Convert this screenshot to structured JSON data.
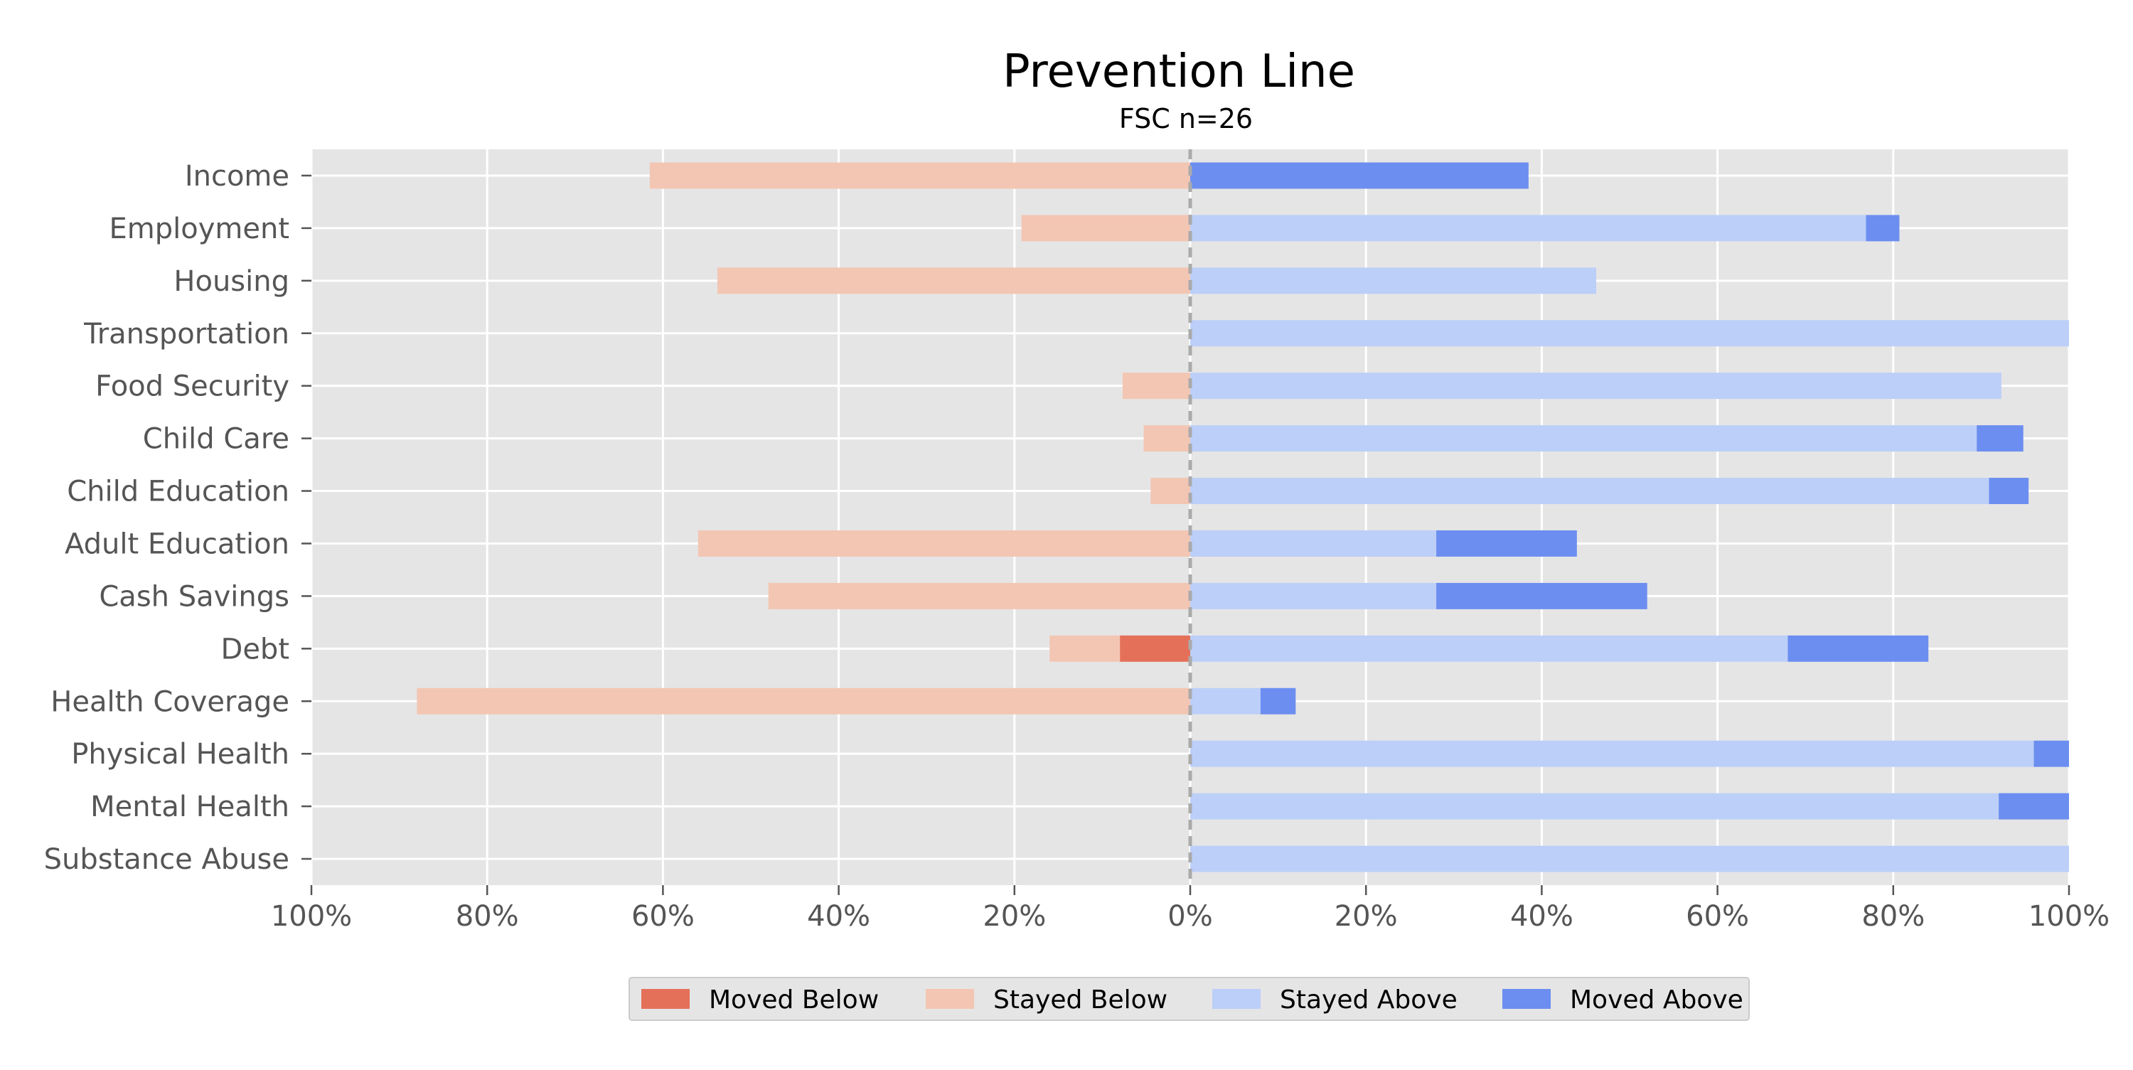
{
  "chart_data": {
    "type": "bar",
    "orientation": "horizontal",
    "stacked": "diverging",
    "title": "Prevention Line",
    "subtitle": "FSC n=26",
    "xlabel": "",
    "ylabel": "",
    "xlim": [
      -100,
      100
    ],
    "xticks": [
      -100,
      -80,
      -60,
      -40,
      -20,
      0,
      20,
      40,
      60,
      80,
      100
    ],
    "xtick_labels": [
      "100%",
      "80%",
      "60%",
      "40%",
      "20%",
      "0%",
      "20%",
      "40%",
      "60%",
      "80%",
      "100%"
    ],
    "categories": [
      "Income",
      "Employment",
      "Housing",
      "Transportation",
      "Food Security",
      "Child Care",
      "Child Education",
      "Adult Education",
      "Cash Savings",
      "Debt",
      "Health Coverage",
      "Physical Health",
      "Mental Health",
      "Substance Abuse"
    ],
    "series": [
      {
        "name": "Moved Below",
        "side": "left",
        "color": "#E57059",
        "values": [
          0,
          0,
          0,
          0,
          0,
          0,
          0,
          0,
          0,
          8,
          0,
          0,
          0,
          0
        ]
      },
      {
        "name": "Stayed Below",
        "side": "left",
        "color": "#F3C6B3",
        "values": [
          61.5,
          19.2,
          53.8,
          0,
          7.7,
          5.3,
          4.5,
          56,
          48,
          8,
          88,
          0,
          0,
          0
        ]
      },
      {
        "name": "Stayed Above",
        "side": "right",
        "color": "#BCCFF8",
        "values": [
          0,
          76.9,
          46.2,
          100,
          92.3,
          89.5,
          90.9,
          28,
          28,
          68,
          8,
          96,
          92,
          100
        ]
      },
      {
        "name": "Moved Above",
        "side": "right",
        "color": "#6B8EF0",
        "values": [
          38.5,
          3.8,
          0,
          0,
          0,
          5.3,
          4.5,
          16,
          24,
          16,
          4,
          4,
          8,
          0
        ]
      }
    ],
    "grid": true,
    "legend_position": "bottom-center",
    "zero_line": "dashed"
  },
  "colors": {
    "plot_background": "#E5E5E5",
    "grid": "#FFFFFF",
    "tick_text": "#555555",
    "title_text": "#000000",
    "zero_line": "#AAAAAA",
    "legend_background": "#E5E5E5",
    "legend_border": "#CCCCCC"
  }
}
